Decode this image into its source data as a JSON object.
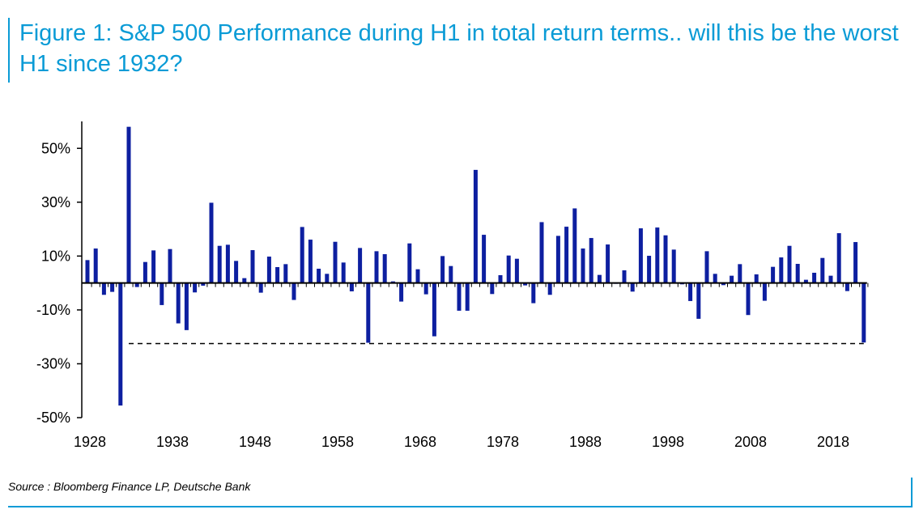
{
  "title": "Figure 1: S&P 500 Performance during H1 in total return terms.. will this be the worst H1 since 1932?",
  "source": "Source : Bloomberg Finance LP, Deutsche Bank",
  "colors": {
    "bar": "#0d1fa0",
    "title": "#0a9bd6",
    "reference_line": "#000000"
  },
  "chart_data": {
    "type": "bar",
    "title": "",
    "xlabel": "",
    "ylabel": "",
    "ylim": [
      -50,
      60
    ],
    "y_ticks": [
      50,
      30,
      10,
      -10,
      -30,
      -50
    ],
    "y_tick_labels": [
      "50%",
      "30%",
      "10%",
      "-10%",
      "-30%",
      "-50%"
    ],
    "x_tick_labels": [
      "1928",
      "1938",
      "1948",
      "1958",
      "1968",
      "1978",
      "1988",
      "1998",
      "2008",
      "2018"
    ],
    "x_range": [
      1928,
      2022
    ],
    "reference_line": {
      "value": -22.5,
      "x_start": 1933,
      "x_end": 2022,
      "style": "dashed"
    },
    "grid": false,
    "legend": "none",
    "x": [
      1928,
      1929,
      1930,
      1931,
      1932,
      1933,
      1934,
      1935,
      1936,
      1937,
      1938,
      1939,
      1940,
      1941,
      1942,
      1943,
      1944,
      1945,
      1946,
      1947,
      1948,
      1949,
      1950,
      1951,
      1952,
      1953,
      1954,
      1955,
      1956,
      1957,
      1958,
      1959,
      1960,
      1961,
      1962,
      1963,
      1964,
      1965,
      1966,
      1967,
      1968,
      1969,
      1970,
      1971,
      1972,
      1973,
      1974,
      1975,
      1976,
      1977,
      1978,
      1979,
      1980,
      1981,
      1982,
      1983,
      1984,
      1985,
      1986,
      1987,
      1988,
      1989,
      1990,
      1991,
      1992,
      1993,
      1994,
      1995,
      1996,
      1997,
      1998,
      1999,
      2000,
      2001,
      2002,
      2003,
      2004,
      2005,
      2006,
      2007,
      2008,
      2009,
      2010,
      2011,
      2012,
      2013,
      2014,
      2015,
      2016,
      2017,
      2018,
      2019,
      2020,
      2021,
      2022
    ],
    "values": [
      8.5,
      12.8,
      -4.4,
      -3.3,
      -45.5,
      58,
      -1.5,
      7.8,
      12.1,
      -8.2,
      12.6,
      -15,
      -17.5,
      -3.5,
      -1,
      29.8,
      13.8,
      14.2,
      8.2,
      1.8,
      12.2,
      -3.6,
      9.8,
      5.9,
      7,
      -6.3,
      20.8,
      16.1,
      5.3,
      3.4,
      15.3,
      7.6,
      -3.1,
      13,
      -22.2,
      11.8,
      10.7,
      0.6,
      -6.9,
      14.7,
      5.1,
      -4.2,
      -19.8,
      10,
      6.3,
      -10.3,
      -10.3,
      42,
      17.9,
      -4.1,
      2.9,
      10.2,
      9,
      -0.9,
      -7.5,
      22.6,
      -4.4,
      17.5,
      20.9,
      27.7,
      12.8,
      16.7,
      3,
      14.3,
      -0.3,
      4.7,
      -3.2,
      20.3,
      10.1,
      20.6,
      17.7,
      12.4,
      -0.5,
      -6.7,
      -13.3,
      11.8,
      3.4,
      -0.8,
      2.7,
      7,
      -11.9,
      3.2,
      -6.6,
      6,
      9.5,
      13.8,
      7.1,
      1.2,
      3.8,
      9.3,
      2.7,
      18.5,
      -3,
      15.2,
      -22.1
    ]
  }
}
